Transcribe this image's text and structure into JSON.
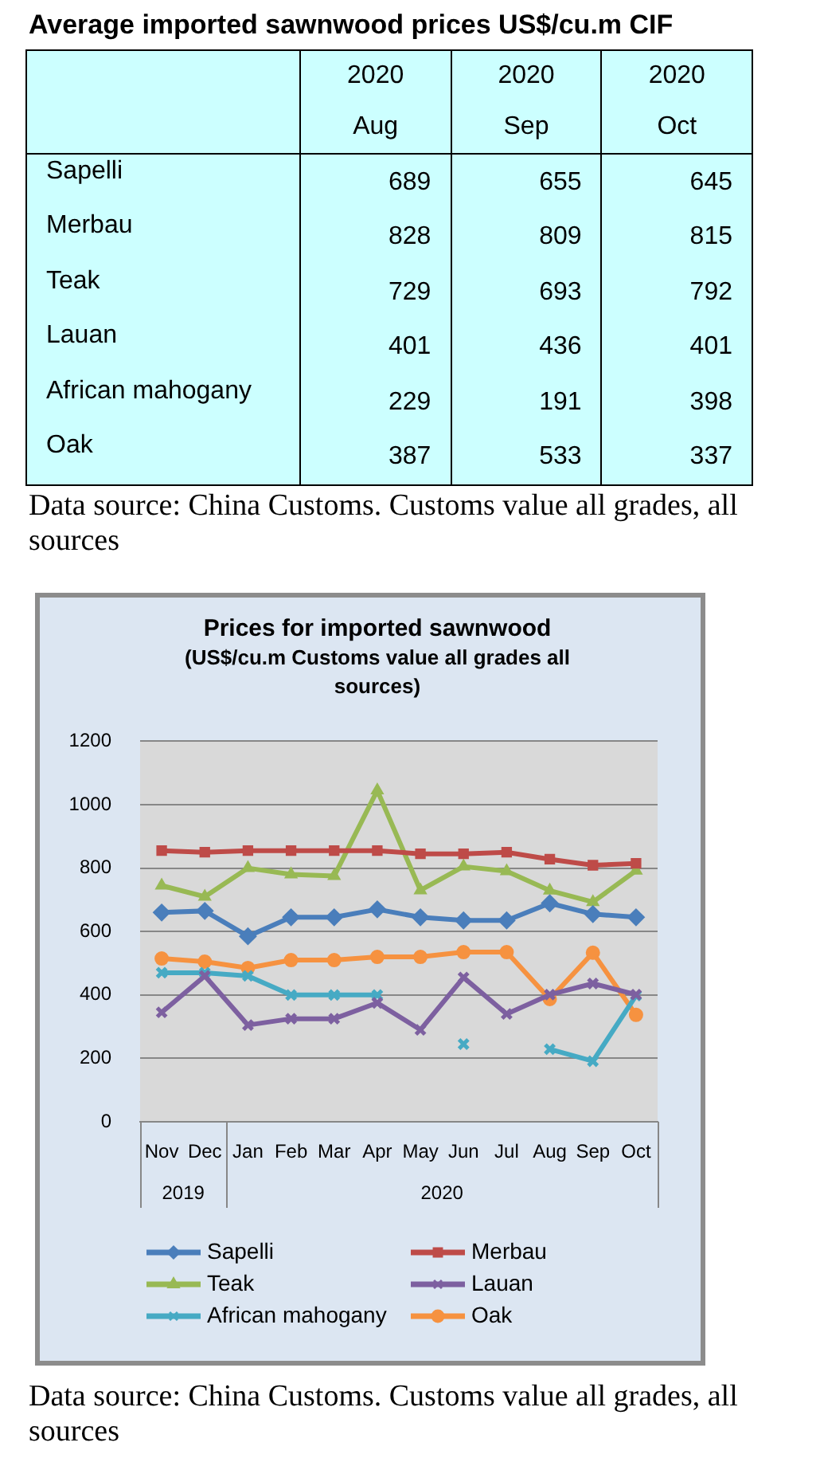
{
  "chart_data": [
    {
      "type": "other",
      "title": "Average imported sawnwood prices US$/cu.m CIF",
      "categories": [
        "2020\nAug",
        "2020\nSep",
        "2020\nOct"
      ],
      "series": [
        {
          "name": "Sapelli",
          "values": [
            689,
            655,
            645
          ]
        },
        {
          "name": "Merbau",
          "values": [
            828,
            809,
            815
          ]
        },
        {
          "name": "Teak",
          "values": [
            729,
            693,
            792
          ]
        },
        {
          "name": "Lauan",
          "values": [
            401,
            436,
            401
          ]
        },
        {
          "name": "African mahogany",
          "values": [
            229,
            191,
            398
          ]
        },
        {
          "name": "Oak",
          "values": [
            387,
            533,
            337
          ]
        }
      ],
      "data_labels": true,
      "annotations": [
        "Data source: China Customs. Customs value all grades, all sources"
      ]
    },
    {
      "type": "line",
      "title": "Prices for imported sawnwood",
      "subtitle": "(US$/cu.m Customs value all grades all sources)",
      "categories": [
        "Nov",
        "Dec",
        "Jan",
        "Feb",
        "Mar",
        "Apr",
        "May",
        "Jun",
        "Jul",
        "Aug",
        "Sep",
        "Oct"
      ],
      "series": [
        {
          "name": "Sapelli",
          "color": "#4a7ebb",
          "marker": "diamond",
          "values": [
            660,
            665,
            585,
            645,
            645,
            670,
            645,
            635,
            635,
            689,
            655,
            645
          ]
        },
        {
          "name": "Merbau",
          "color": "#be4b48",
          "marker": "square",
          "values": [
            855,
            850,
            855,
            855,
            855,
            855,
            845,
            845,
            850,
            828,
            809,
            815
          ]
        },
        {
          "name": "Teak",
          "color": "#98b954",
          "marker": "triangle",
          "values": [
            745,
            710,
            800,
            780,
            775,
            1045,
            730,
            805,
            790,
            729,
            693,
            792
          ]
        },
        {
          "name": "Lauan",
          "color": "#7d60a0",
          "marker": "cross",
          "values": [
            345,
            460,
            305,
            325,
            325,
            375,
            290,
            455,
            340,
            401,
            436,
            401
          ]
        },
        {
          "name": "African mahogany",
          "color": "#46aac4",
          "marker": "cross",
          "values": [
            470,
            470,
            460,
            400,
            400,
            400,
            null,
            245,
            null,
            229,
            191,
            398
          ]
        },
        {
          "name": "Oak",
          "color": "#f69240",
          "marker": "circle",
          "values": [
            515,
            505,
            485,
            510,
            510,
            520,
            520,
            535,
            535,
            387,
            533,
            337
          ]
        }
      ],
      "ylim": [
        0,
        1200
      ],
      "yticks": [
        0,
        200,
        400,
        600,
        800,
        1000,
        1200
      ],
      "grid": "y",
      "legend": "bottom",
      "annotations": [
        "2019",
        "2020",
        "Data source: China Customs. Customs value all grades, all sources"
      ]
    }
  ]
}
